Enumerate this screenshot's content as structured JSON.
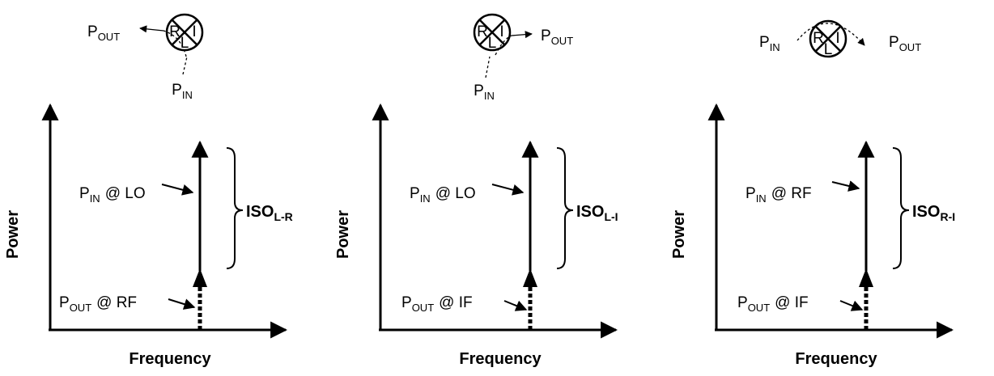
{
  "panels": [
    {
      "mixer": {
        "ports": [
          "R",
          "I",
          "L"
        ],
        "out_label": {
          "base": "P",
          "sub": "OUT"
        },
        "in_label": {
          "base": "P",
          "sub": "IN"
        }
      },
      "y_axis": "Power",
      "x_axis": "Frequency",
      "upper_label": {
        "base": "P",
        "sub": "IN",
        "rest": "@ LO"
      },
      "lower_label": {
        "base": "P",
        "sub": "OUT",
        "rest": "@ RF"
      },
      "iso": {
        "base": "ISO",
        "sub": "L-R"
      }
    },
    {
      "mixer": {
        "ports": [
          "R",
          "I",
          "L"
        ],
        "out_label": {
          "base": "P",
          "sub": "OUT"
        },
        "in_label": {
          "base": "P",
          "sub": "IN"
        }
      },
      "y_axis": "Power",
      "x_axis": "Frequency",
      "upper_label": {
        "base": "P",
        "sub": "IN",
        "rest": "@ LO"
      },
      "lower_label": {
        "base": "P",
        "sub": "OUT",
        "rest": "@ IF"
      },
      "iso": {
        "base": "ISO",
        "sub": "L-I"
      }
    },
    {
      "mixer": {
        "ports": [
          "R",
          "I",
          "L"
        ],
        "out_label": {
          "base": "P",
          "sub": "OUT"
        },
        "in_label": {
          "base": "P",
          "sub": "IN"
        }
      },
      "y_axis": "Power",
      "x_axis": "Frequency",
      "upper_label": {
        "base": "P",
        "sub": "IN",
        "rest": "@ RF"
      },
      "lower_label": {
        "base": "P",
        "sub": "OUT",
        "rest": "@ IF"
      },
      "iso": {
        "base": "ISO",
        "sub": "R-I"
      }
    }
  ]
}
